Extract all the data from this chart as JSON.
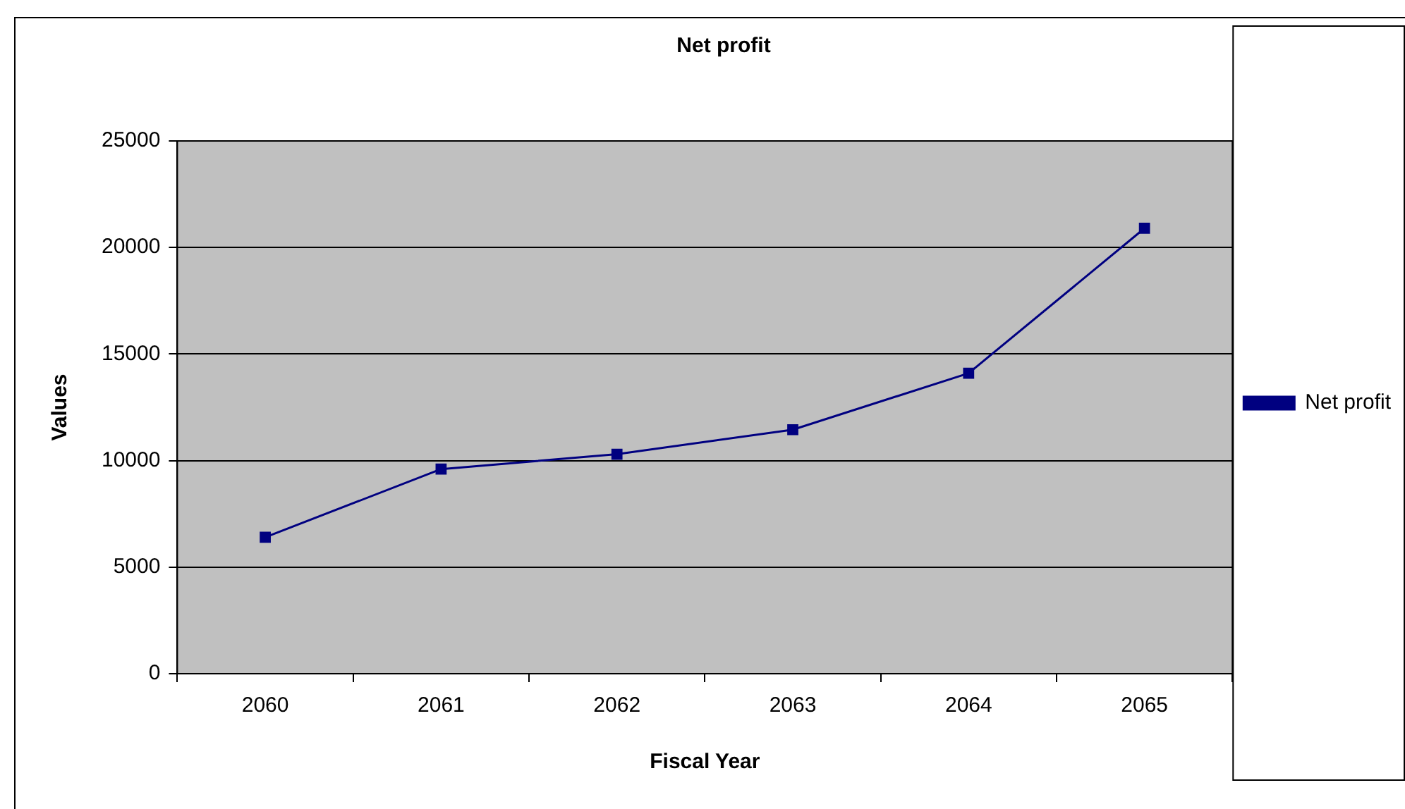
{
  "chart_data": {
    "type": "line",
    "title": "Net profit",
    "xlabel": "Fiscal Year",
    "ylabel": "Values",
    "categories": [
      "2060",
      "2061",
      "2062",
      "2063",
      "2064",
      "2065"
    ],
    "series": [
      {
        "name": "Net profit",
        "color": "#000080",
        "values": [
          6400,
          9600,
          10300,
          11450,
          14100,
          20900
        ]
      }
    ],
    "ylim": [
      0,
      25000
    ],
    "yticks": [
      0,
      5000,
      10000,
      15000,
      20000,
      25000
    ],
    "grid": "y",
    "legend": "right",
    "marker": "square",
    "line_style": "solid"
  }
}
